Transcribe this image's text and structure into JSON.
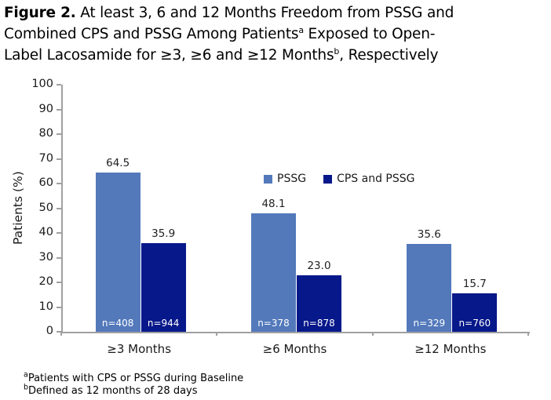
{
  "figure": {
    "title": {
      "lines": [
        [
          {
            "t": "Figure 2.",
            "bold": true
          },
          {
            "t": " At least 3, 6 and 12 Months Freedom from PSSG and"
          }
        ],
        [
          {
            "t": "Combined CPS and PSSG Among Patients"
          },
          {
            "t": "a",
            "sup": true
          },
          {
            "t": " Exposed to Open-"
          }
        ],
        [
          {
            "t": "Label Lacosamide for ≥3, ≥6 and ≥12 Months"
          },
          {
            "t": "b",
            "sup": true
          },
          {
            "t": ", Respectively"
          }
        ]
      ]
    },
    "footnotes": [
      [
        {
          "t": "a",
          "sup": true
        },
        {
          "t": "Patients with CPS or PSSG during Baseline"
        }
      ],
      [
        {
          "t": "b",
          "sup": true
        },
        {
          "t": "Defined as 12 months of 28 days"
        }
      ]
    ]
  },
  "chart_data": {
    "type": "bar",
    "categories": [
      "≥3 Months",
      "≥6 Months",
      "≥12 Months"
    ],
    "series": [
      {
        "name": "PSSG",
        "color": "#5379bb",
        "values": [
          64.5,
          48.1,
          35.6
        ],
        "n": [
          408,
          378,
          329
        ],
        "n_labels": [
          "n=408",
          "n=378",
          "n=329"
        ]
      },
      {
        "name": "CPS and PSSG",
        "color": "#07188a",
        "values": [
          35.9,
          23.0,
          15.7
        ],
        "n": [
          944,
          878,
          760
        ],
        "n_labels": [
          "n=944",
          "n=878",
          "n=760"
        ]
      }
    ],
    "xlabel": "",
    "ylabel": "Patients (%)",
    "ylim": [
      0,
      100
    ],
    "yticks": [
      0,
      10,
      20,
      30,
      40,
      50,
      60,
      70,
      80,
      90,
      100
    ],
    "grid": false,
    "legend_position": "top-center",
    "bar_value_decimals": 1
  },
  "colors": {
    "axis": "#a0a0a0",
    "text": "#1a1a1a",
    "value_label": "#1f1f1f",
    "n_label": "#ffffff",
    "background": "#ffffff"
  }
}
